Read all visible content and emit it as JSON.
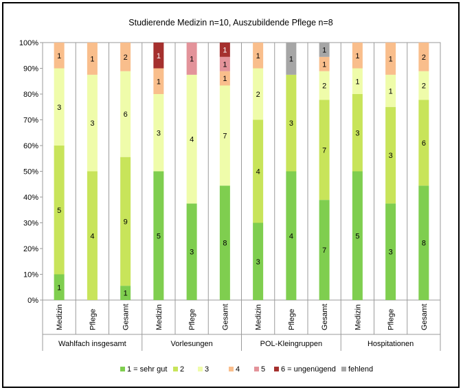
{
  "chart_data": {
    "type": "bar",
    "stacked": true,
    "title": "Studierende Medizin n=10, Auszubildende Pflege n=8",
    "y_ticks": [
      "0%",
      "10%",
      "20%",
      "30%",
      "40%",
      "50%",
      "60%",
      "70%",
      "80%",
      "90%",
      "100%"
    ],
    "ylim": [
      0,
      100
    ],
    "groups": [
      {
        "label": "Wahlfach insgesamt",
        "categories": [
          "Medizin",
          "Pflege",
          "Gesamt"
        ]
      },
      {
        "label": "Vorlesungen",
        "categories": [
          "Medizin",
          "Pflege",
          "Gesamt"
        ]
      },
      {
        "label": "POL-Kleingruppen",
        "categories": [
          "Medizin",
          "Pflege",
          "Gesamt"
        ]
      },
      {
        "label": "Hospitationen",
        "categories": [
          "Medizin",
          "Pflege",
          "Gesamt"
        ]
      }
    ],
    "series": [
      {
        "name": "1 = sehr gut",
        "color": "#7fce4f",
        "values": [
          1,
          0,
          1,
          5,
          3,
          8,
          3,
          4,
          7,
          5,
          3,
          8
        ]
      },
      {
        "name": "2",
        "color": "#c8e45a",
        "values": [
          5,
          4,
          9,
          0,
          0,
          0,
          4,
          3,
          7,
          3,
          3,
          6
        ]
      },
      {
        "name": "3",
        "color": "#effcaa",
        "values": [
          3,
          3,
          6,
          3,
          4,
          7,
          2,
          0,
          2,
          1,
          1,
          2
        ]
      },
      {
        "name": "4",
        "color": "#f9be8c",
        "values": [
          1,
          1,
          2,
          1,
          0,
          1,
          1,
          0,
          1,
          1,
          1,
          2
        ]
      },
      {
        "name": "5",
        "color": "#e3939a",
        "values": [
          0,
          0,
          0,
          0,
          1,
          1,
          0,
          0,
          0,
          0,
          0,
          0
        ]
      },
      {
        "name": "6 = ungenügend",
        "color": "#a5302e",
        "values": [
          0,
          0,
          0,
          1,
          0,
          1,
          0,
          0,
          0,
          0,
          0,
          0
        ]
      },
      {
        "name": "fehlend",
        "color": "#a6a6a6",
        "values": [
          0,
          0,
          0,
          0,
          0,
          0,
          0,
          1,
          1,
          0,
          0,
          0
        ]
      }
    ],
    "totals": [
      10,
      8,
      18,
      10,
      8,
      18,
      10,
      8,
      18,
      10,
      8,
      18
    ],
    "grid": false,
    "legend_position": "bottom"
  }
}
